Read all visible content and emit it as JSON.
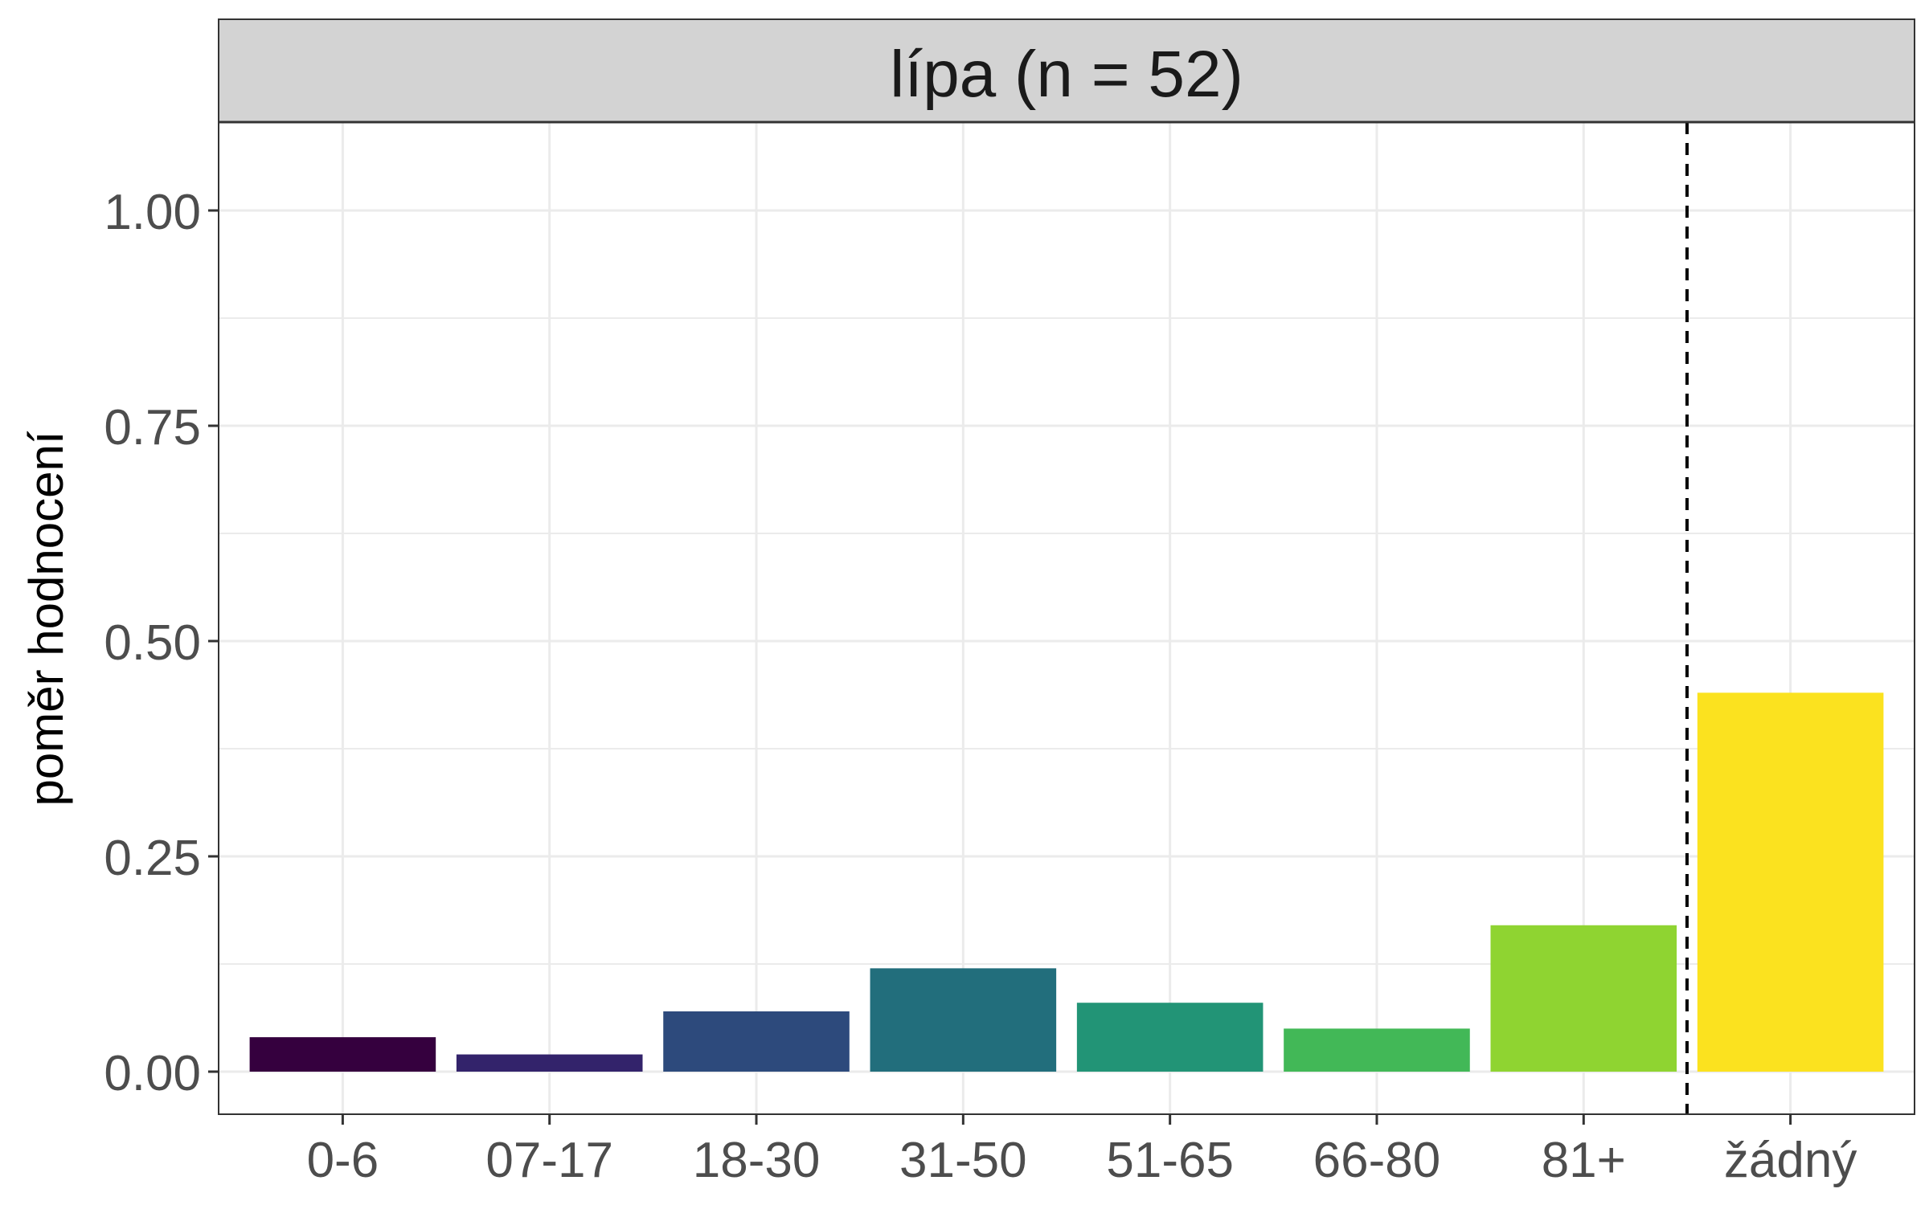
{
  "chart_data": {
    "type": "bar",
    "facet_title": "lípa (n = 52)",
    "title": "",
    "xlabel": "",
    "ylabel": "poměr hodnocení",
    "categories": [
      "0-6",
      "07-17",
      "18-30",
      "31-50",
      "51-65",
      "66-80",
      "81+",
      "žádný"
    ],
    "values": [
      0.04,
      0.02,
      0.07,
      0.12,
      0.08,
      0.05,
      0.17,
      0.44
    ],
    "colors": [
      "#35003e",
      "#33236b",
      "#2d4a7c",
      "#226e7c",
      "#229476",
      "#42b857",
      "#8fd431",
      "#fbe21f"
    ],
    "ylim": [
      -0.05,
      1.1
    ],
    "yticks": [
      0,
      0.25,
      0.5,
      0.75,
      1.0
    ],
    "ytick_labels": [
      "0.00",
      "0.25",
      "0.50",
      "0.75",
      "1.00"
    ],
    "reference_line": {
      "style": "dashed",
      "between": [
        "81+",
        "žádný"
      ]
    },
    "grid": true,
    "legend": "none",
    "theme": {
      "strip_bg": "#d3d3d3",
      "grid_color": "#ebebeb",
      "panel_border": "#333333",
      "text_color": "#4d4d4d"
    }
  }
}
